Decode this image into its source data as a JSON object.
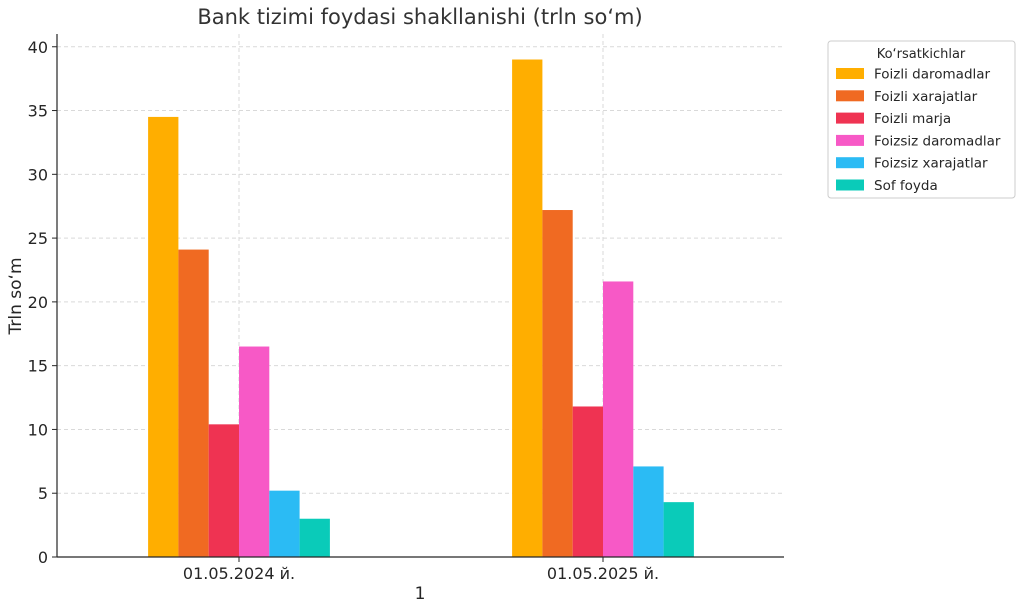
{
  "chart_data": {
    "type": "bar",
    "title": "Bank tizimi foydasi shakllanishi (trln so‘m)",
    "xlabel": "1",
    "ylabel": "Trln so‘m",
    "categories": [
      "01.05.2024 й.",
      "01.05.2025 й."
    ],
    "ylim": [
      0,
      41
    ],
    "yticks": [
      0,
      5,
      10,
      15,
      20,
      25,
      30,
      35,
      40
    ],
    "grid": true,
    "legend_title": "Ko‘rsatkichlar",
    "legend_position": "top-right, outside",
    "series": [
      {
        "name": "Foizli daromadlar",
        "color": "#FFAE00",
        "values": [
          34.5,
          39.0
        ]
      },
      {
        "name": "Foizli xarajatlar",
        "color": "#F06A22",
        "values": [
          24.1,
          27.2
        ]
      },
      {
        "name": "Foizli marja",
        "color": "#EF3352",
        "values": [
          10.4,
          11.8
        ]
      },
      {
        "name": "Foizsiz daromadlar",
        "color": "#F759C6",
        "values": [
          16.5,
          21.6
        ]
      },
      {
        "name": "Foizsiz xarajatlar",
        "color": "#2BBBF4",
        "values": [
          5.2,
          7.1
        ]
      },
      {
        "name": "Sof foyda",
        "color": "#0ACBB9",
        "values": [
          3.0,
          4.3
        ]
      }
    ]
  }
}
